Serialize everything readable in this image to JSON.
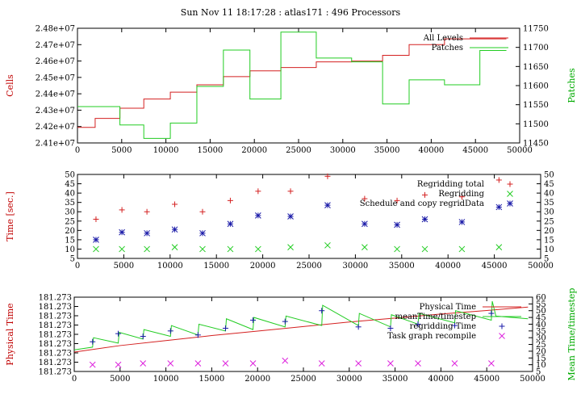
{
  "title": "Sun Nov 11 18:17:28 : atlas171 : 496 Processors",
  "colors": {
    "red": "#d42020",
    "green": "#22cc22",
    "blue": "#1a1aa8",
    "magenta": "#dd22dd",
    "axis_red": "#c00000",
    "axis_green": "#00aa00"
  },
  "chart_data": [
    {
      "type": "line",
      "ylabel": "Cells",
      "y2label": "Patches",
      "xlim": [
        0,
        50000
      ],
      "ylim": [
        24100000,
        24800000
      ],
      "y2lim": [
        11450,
        11750
      ],
      "xticks": [
        "0",
        "5000",
        "10000",
        "15000",
        "20000",
        "25000",
        "30000",
        "35000",
        "40000",
        "45000",
        "50000"
      ],
      "yticks": [
        "2.41e+07",
        "2.42e+07",
        "2.43e+07",
        "2.44e+07",
        "2.45e+07",
        "2.46e+07",
        "2.47e+07",
        "2.48e+07"
      ],
      "y2ticks": [
        "11450",
        "11500",
        "11550",
        "11600",
        "11650",
        "11700",
        "11750"
      ],
      "series": [
        {
          "name": "All Levels",
          "axis": "left",
          "style": "step",
          "color": "#d42020",
          "x": [
            0,
            2000,
            4800,
            7500,
            10500,
            13500,
            16500,
            19500,
            23000,
            27000,
            31000,
            34500,
            37500,
            41500,
            45500,
            48500
          ],
          "y": [
            24195000,
            24250000,
            24312000,
            24368000,
            24410000,
            24455000,
            24505000,
            24540000,
            24560000,
            24595000,
            24600000,
            24635000,
            24700000,
            24735000,
            24735000,
            24735000
          ]
        },
        {
          "name": "Patches",
          "axis": "right",
          "style": "step",
          "color": "#22cc22",
          "x": [
            0,
            2000,
            4800,
            7500,
            10500,
            13500,
            16500,
            19500,
            23000,
            27000,
            31000,
            34500,
            37500,
            41500,
            45500,
            48500
          ],
          "y": [
            11545,
            11545,
            11497,
            11462,
            11502,
            11598,
            11693,
            11565,
            11740,
            11672,
            11662,
            11552,
            11615,
            11602,
            11692,
            11692
          ]
        }
      ]
    },
    {
      "type": "scatter",
      "ylabel": "Time [sec.]",
      "xlim": [
        0,
        50000
      ],
      "ylim": [
        5,
        50
      ],
      "yticks": [
        "5",
        "10",
        "15",
        "20",
        "25",
        "30",
        "35",
        "40",
        "45",
        "50"
      ],
      "y2ticks": [
        "5",
        "10",
        "15",
        "20",
        "25",
        "30",
        "35",
        "40",
        "45",
        "50"
      ],
      "xticks": [
        "0",
        "5000",
        "10000",
        "15000",
        "20000",
        "25000",
        "30000",
        "35000",
        "40000",
        "45000",
        "50000"
      ],
      "series": [
        {
          "name": "Regridding total",
          "marker": "+",
          "color": "#d42020",
          "x": [
            2000,
            4800,
            7500,
            10500,
            13500,
            16500,
            19500,
            23000,
            27000,
            31000,
            34500,
            37500,
            41500,
            45500
          ],
          "y": [
            26,
            31,
            30,
            34,
            30,
            36,
            41,
            41,
            49,
            37,
            36,
            39,
            38,
            47
          ]
        },
        {
          "name": "Regridding",
          "marker": "x",
          "color": "#22cc22",
          "x": [
            2000,
            4800,
            7500,
            10500,
            13500,
            16500,
            19500,
            23000,
            27000,
            31000,
            34500,
            37500,
            41500,
            45500
          ],
          "y": [
            10,
            10,
            10,
            11,
            10,
            10,
            10,
            11,
            12,
            11,
            10,
            10,
            10,
            11
          ]
        },
        {
          "name": "Schedule and copy regridData",
          "marker": "*",
          "color": "#1a1aa8",
          "x": [
            2000,
            4800,
            7500,
            10500,
            13500,
            16500,
            19500,
            23000,
            27000,
            31000,
            34500,
            37500,
            41500,
            45500
          ],
          "y": [
            15,
            19,
            18.5,
            20.5,
            18.5,
            23.5,
            28,
            27.5,
            33.5,
            23.5,
            23,
            26,
            24.5,
            32.5
          ]
        }
      ]
    },
    {
      "type": "line",
      "ylabel": "Physical Time",
      "y2label": "Mean Time/timestep",
      "xlim": [
        0,
        50000
      ],
      "y2lim": [
        5,
        60
      ],
      "yticks": [
        "181.273",
        "181.273",
        "181.273",
        "181.273",
        "181.273",
        "181.273",
        "181.273",
        "181.273",
        "181.273"
      ],
      "y2ticks": [
        "5",
        "10",
        "15",
        "20",
        "25",
        "30",
        "35",
        "40",
        "45",
        "50",
        "55",
        "60"
      ],
      "xticks": [
        "0",
        "5000",
        "10000",
        "15000",
        "20000",
        "25000",
        "30000",
        "35000",
        "40000",
        "45000",
        "50000"
      ],
      "series": [
        {
          "name": "Physical Time",
          "axis": "left",
          "color": "#d42020",
          "x": [
            0,
            5000,
            10000,
            15000,
            20000,
            25000,
            30000,
            35000,
            40000,
            45000,
            49500
          ],
          "y": [
            0.0,
            0.13,
            0.23,
            0.33,
            0.42,
            0.51,
            0.6,
            0.68,
            0.76,
            0.83,
            0.9
          ]
        },
        {
          "name": "meanTime/timestep",
          "axis": "right",
          "color": "#22cc22",
          "x": [
            0,
            2000,
            2100,
            4800,
            4900,
            7500,
            7600,
            10500,
            10600,
            13500,
            13600,
            16500,
            16600,
            19500,
            19600,
            23000,
            23100,
            27000,
            27100,
            31000,
            31100,
            34500,
            34600,
            37500,
            37600,
            41500,
            41600,
            45500,
            45600,
            46000,
            49500
          ],
          "y": [
            21,
            23,
            30,
            26,
            34,
            29,
            36,
            31,
            39,
            32,
            40,
            35,
            44,
            36,
            45,
            38,
            46,
            39,
            54,
            39,
            48,
            38,
            47,
            40,
            48,
            41,
            50,
            43,
            57,
            46,
            44
          ]
        },
        {
          "name": "regridding Time",
          "axis": "right",
          "marker": "+",
          "color": "#1a1aa8",
          "x": [
            2000,
            4800,
            7500,
            10500,
            13500,
            16500,
            19500,
            23000,
            27000,
            31000,
            34500,
            37500,
            41500,
            45500
          ],
          "y": [
            27,
            33,
            31,
            35,
            32,
            37,
            43,
            42,
            50,
            38,
            37,
            40,
            39,
            48
          ]
        },
        {
          "name": "Task graph recompile",
          "axis": "right",
          "marker": "x",
          "color": "#dd22dd",
          "x": [
            2000,
            4800,
            7500,
            10500,
            13500,
            16500,
            19500,
            23000,
            27000,
            31000,
            34500,
            37500,
            41500,
            45500
          ],
          "y": [
            10,
            10,
            11,
            11,
            11,
            11,
            11,
            13,
            11,
            11,
            11,
            11,
            11,
            11
          ]
        }
      ]
    }
  ]
}
